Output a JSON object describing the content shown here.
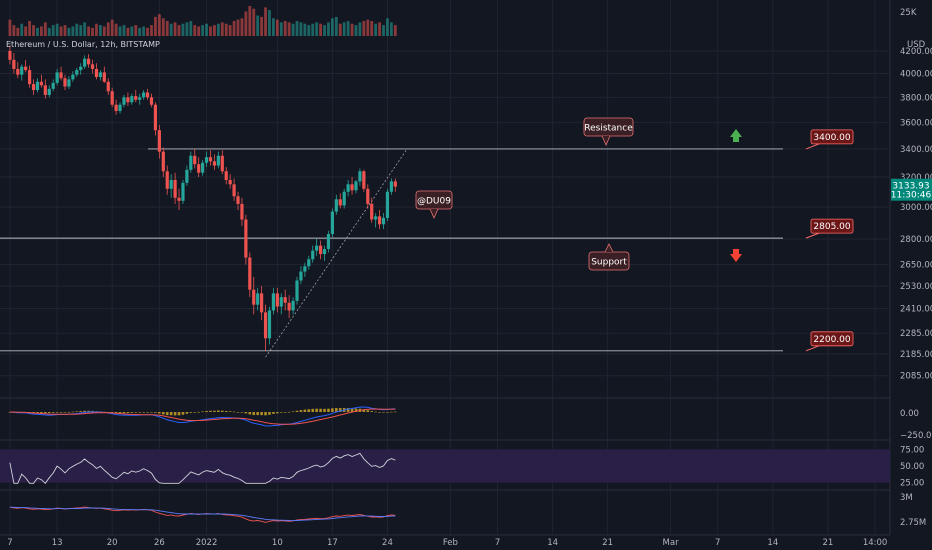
{
  "chart_data": {
    "type": "candlestick",
    "title": "Ethereum / U.S. Dollar, 12h, BITSTAMP",
    "currency_label": "USD",
    "volume_scale_label": "25K",
    "price_axis": {
      "ticks": [
        4200,
        4000,
        3800,
        3600,
        3400,
        3200,
        3000,
        2800,
        2650,
        2530,
        2410,
        2285,
        2185,
        2085
      ],
      "labels": [
        "4200.00",
        "4000.00",
        "3800.00",
        "3600.00",
        "3400.00",
        "3200.00",
        "3000.00",
        "2800.00",
        "2650.00",
        "2530.00",
        "2410.00",
        "2285.00",
        "2185.00",
        "2085.00"
      ],
      "scale": "log",
      "range": [
        2000,
        4300
      ]
    },
    "x_axis": {
      "labels": [
        {
          "text": "7",
          "day": 0
        },
        {
          "text": "13",
          "day": 6
        },
        {
          "text": "20",
          "day": 13
        },
        {
          "text": "26",
          "day": 19
        },
        {
          "text": "2022",
          "day": 25
        },
        {
          "text": "10",
          "day": 34
        },
        {
          "text": "17",
          "day": 41
        },
        {
          "text": "24",
          "day": 48
        },
        {
          "text": "Feb",
          "day": 56
        },
        {
          "text": "7",
          "day": 62
        },
        {
          "text": "14",
          "day": 69
        },
        {
          "text": "21",
          "day": 76
        },
        {
          "text": "Mar",
          "day": 84
        },
        {
          "text": "7",
          "day": 90
        },
        {
          "text": "14",
          "day": 97
        },
        {
          "text": "21",
          "day": 104
        },
        {
          "text": "14:00",
          "day": 110
        }
      ],
      "day_range": [
        -0.5,
        110.5
      ]
    },
    "current_price": {
      "value": "3133.93",
      "countdown": "11:30:46",
      "price": 3133.93
    },
    "levels": [
      {
        "value": 3400,
        "label": "3400.00"
      },
      {
        "value": 2805,
        "label": "2805.00"
      },
      {
        "value": 2200,
        "label": "2200.00"
      }
    ],
    "annotations": {
      "resistance": "Resistance",
      "support": "Support",
      "author": "@DU09"
    },
    "candles": [
      [
        4200,
        4250,
        4080,
        4120
      ],
      [
        4120,
        4180,
        4000,
        4040
      ],
      [
        4040,
        4100,
        3960,
        3990
      ],
      [
        3990,
        4080,
        3940,
        4060
      ],
      [
        4060,
        4120,
        4010,
        4030
      ],
      [
        4030,
        4070,
        3880,
        3910
      ],
      [
        3910,
        3950,
        3820,
        3860
      ],
      [
        3860,
        3960,
        3840,
        3930
      ],
      [
        3930,
        3990,
        3880,
        3900
      ],
      [
        3900,
        3950,
        3790,
        3820
      ],
      [
        3820,
        3900,
        3800,
        3870
      ],
      [
        3870,
        3950,
        3850,
        3920
      ],
      [
        3920,
        4040,
        3900,
        4010
      ],
      [
        4010,
        4060,
        3940,
        3960
      ],
      [
        3960,
        3990,
        3860,
        3890
      ],
      [
        3890,
        3980,
        3870,
        3950
      ],
      [
        3950,
        4020,
        3930,
        3990
      ],
      [
        3990,
        4050,
        3970,
        4030
      ],
      [
        4030,
        4090,
        3990,
        4060
      ],
      [
        4060,
        4160,
        4040,
        4130
      ],
      [
        4130,
        4170,
        4050,
        4080
      ],
      [
        4080,
        4120,
        4000,
        4040
      ],
      [
        4040,
        4090,
        3950,
        3970
      ],
      [
        3970,
        4030,
        3940,
        4010
      ],
      [
        4010,
        4060,
        3920,
        3930
      ],
      [
        3930,
        3960,
        3820,
        3850
      ],
      [
        3850,
        3880,
        3720,
        3740
      ],
      [
        3740,
        3780,
        3660,
        3690
      ],
      [
        3690,
        3760,
        3670,
        3740
      ],
      [
        3740,
        3820,
        3720,
        3800
      ],
      [
        3800,
        3840,
        3730,
        3760
      ],
      [
        3760,
        3830,
        3740,
        3810
      ],
      [
        3810,
        3860,
        3760,
        3780
      ],
      [
        3780,
        3830,
        3740,
        3800
      ],
      [
        3800,
        3860,
        3780,
        3840
      ],
      [
        3840,
        3870,
        3780,
        3800
      ],
      [
        3800,
        3830,
        3720,
        3740
      ],
      [
        3740,
        3760,
        3500,
        3540
      ],
      [
        3540,
        3580,
        3330,
        3380
      ],
      [
        3380,
        3410,
        3200,
        3240
      ],
      [
        3240,
        3280,
        3080,
        3120
      ],
      [
        3120,
        3220,
        3060,
        3180
      ],
      [
        3180,
        3230,
        3020,
        3060
      ],
      [
        3060,
        3120,
        2980,
        3040
      ],
      [
        3040,
        3180,
        3020,
        3160
      ],
      [
        3160,
        3280,
        3140,
        3250
      ],
      [
        3250,
        3380,
        3230,
        3350
      ],
      [
        3350,
        3400,
        3260,
        3290
      ],
      [
        3290,
        3340,
        3200,
        3230
      ],
      [
        3230,
        3320,
        3210,
        3300
      ],
      [
        3300,
        3380,
        3270,
        3340
      ],
      [
        3340,
        3390,
        3280,
        3310
      ],
      [
        3310,
        3360,
        3250,
        3280
      ],
      [
        3280,
        3380,
        3260,
        3350
      ],
      [
        3350,
        3390,
        3220,
        3240
      ],
      [
        3240,
        3270,
        3150,
        3180
      ],
      [
        3180,
        3220,
        3120,
        3150
      ],
      [
        3150,
        3190,
        3040,
        3070
      ],
      [
        3070,
        3100,
        2980,
        3020
      ],
      [
        3020,
        3060,
        2880,
        2920
      ],
      [
        2920,
        2950,
        2650,
        2690
      ],
      [
        2690,
        2720,
        2470,
        2510
      ],
      [
        2510,
        2580,
        2380,
        2430
      ],
      [
        2430,
        2520,
        2400,
        2490
      ],
      [
        2490,
        2530,
        2350,
        2390
      ],
      [
        2390,
        2430,
        2200,
        2260
      ],
      [
        2260,
        2420,
        2230,
        2400
      ],
      [
        2400,
        2520,
        2380,
        2490
      ],
      [
        2490,
        2520,
        2390,
        2420
      ],
      [
        2420,
        2490,
        2380,
        2470
      ],
      [
        2470,
        2510,
        2400,
        2440
      ],
      [
        2440,
        2480,
        2360,
        2400
      ],
      [
        2400,
        2470,
        2380,
        2450
      ],
      [
        2450,
        2580,
        2430,
        2560
      ],
      [
        2560,
        2640,
        2540,
        2610
      ],
      [
        2610,
        2660,
        2580,
        2640
      ],
      [
        2640,
        2700,
        2620,
        2680
      ],
      [
        2680,
        2760,
        2660,
        2730
      ],
      [
        2730,
        2800,
        2700,
        2760
      ],
      [
        2760,
        2790,
        2680,
        2710
      ],
      [
        2710,
        2760,
        2670,
        2740
      ],
      [
        2740,
        2850,
        2720,
        2830
      ],
      [
        2830,
        2990,
        2810,
        2970
      ],
      [
        2970,
        3080,
        2950,
        3050
      ],
      [
        3050,
        3090,
        2990,
        3010
      ],
      [
        3010,
        3120,
        2990,
        3100
      ],
      [
        3100,
        3180,
        3070,
        3150
      ],
      [
        3150,
        3200,
        3080,
        3110
      ],
      [
        3110,
        3180,
        3090,
        3170
      ],
      [
        3170,
        3260,
        3140,
        3240
      ],
      [
        3240,
        3250,
        3100,
        3120
      ],
      [
        3120,
        3150,
        2990,
        3020
      ],
      [
        3020,
        3060,
        2900,
        2920
      ],
      [
        2920,
        2960,
        2870,
        2940
      ],
      [
        2940,
        2980,
        2860,
        2890
      ],
      [
        2890,
        2960,
        2860,
        2930
      ],
      [
        2930,
        3120,
        2910,
        3100
      ],
      [
        3100,
        3190,
        3080,
        3170
      ],
      [
        3170,
        3190,
        3100,
        3134
      ]
    ],
    "volume": [
      12,
      8,
      6,
      9,
      7,
      11,
      8,
      6,
      7,
      10,
      6,
      8,
      9,
      7,
      8,
      6,
      7,
      9,
      8,
      10,
      7,
      6,
      9,
      8,
      7,
      10,
      12,
      9,
      7,
      8,
      6,
      7,
      8,
      6,
      7,
      6,
      8,
      14,
      16,
      13,
      11,
      9,
      10,
      8,
      9,
      10,
      11,
      8,
      7,
      8,
      9,
      7,
      8,
      9,
      10,
      9,
      8,
      11,
      12,
      13,
      18,
      22,
      20,
      15,
      14,
      21,
      19,
      13,
      12,
      10,
      11,
      10,
      9,
      11,
      10,
      9,
      8,
      9,
      10,
      9,
      8,
      10,
      13,
      14,
      9,
      10,
      11,
      9,
      8,
      10,
      11,
      12,
      11,
      9,
      10,
      8,
      13,
      10,
      8
    ],
    "indicators": {
      "macd": {
        "labels": [
          "0.00",
          "−250.00"
        ],
        "ticks": [
          0,
          -250
        ]
      },
      "rsi": {
        "labels": [
          "75.00",
          "50.00",
          "25.00"
        ],
        "ticks": [
          75,
          50,
          25
        ],
        "band": [
          30,
          70
        ]
      },
      "third": {
        "labels": [
          "3M",
          "2.75M"
        ],
        "ticks": [
          3.0,
          2.75
        ]
      }
    }
  },
  "colors": {
    "up": "#26a69a",
    "down": "#ef5350",
    "bg": "#131722",
    "grid": "#1f2430",
    "level_line": "#b8bcc4",
    "box_fill": "#6b1717",
    "box_border": "#ff6b6b",
    "price_tag": "#00897b",
    "rsi_band": "#2a1f47",
    "arrow_up": "#4caf50",
    "arrow_down": "#f44336"
  }
}
